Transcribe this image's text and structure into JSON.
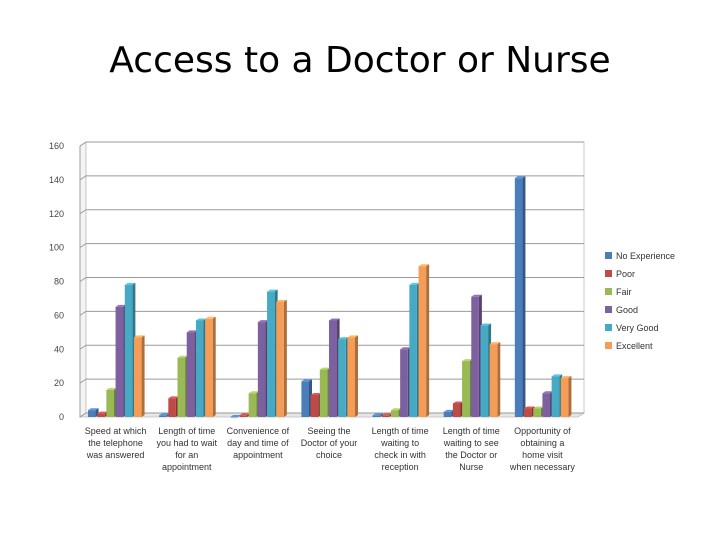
{
  "page": {
    "title": "Access to a Doctor or Nurse"
  },
  "chart_data": {
    "type": "bar",
    "title": "Access to a Doctor or Nurse",
    "xlabel": "",
    "ylabel": "",
    "ylim": [
      0,
      160
    ],
    "yticks": [
      0,
      20,
      40,
      60,
      80,
      100,
      120,
      140,
      160
    ],
    "grid": true,
    "legend_position": "right",
    "categories": [
      [
        "Speed at which",
        "the telephone",
        "was answered"
      ],
      [
        "Length of time",
        "you had to wait",
        "for an",
        "appointment"
      ],
      [
        "Convenience of",
        "day and time of",
        "appointment"
      ],
      [
        "Seeing the",
        "Doctor of your",
        "choice"
      ],
      [
        "Length of time",
        "waiting to",
        "check in with",
        "reception"
      ],
      [
        "Length of time",
        "waiting to see",
        "the Doctor or",
        "Nurse"
      ],
      [
        "Opportunity of",
        "obtaining a",
        "home visit",
        "when necessary"
      ]
    ],
    "series": [
      {
        "name": "No Experience",
        "color": "#4a7ebb",
        "values": [
          4,
          1,
          0,
          21,
          1,
          3,
          141
        ]
      },
      {
        "name": "Poor",
        "color": "#be4b48",
        "values": [
          2,
          11,
          1,
          13,
          1,
          8,
          5
        ]
      },
      {
        "name": "Fair",
        "color": "#98b954",
        "values": [
          16,
          35,
          14,
          28,
          4,
          33,
          5
        ]
      },
      {
        "name": "Good",
        "color": "#7d60a0",
        "values": [
          65,
          50,
          56,
          57,
          40,
          71,
          14
        ]
      },
      {
        "name": "Very Good",
        "color": "#46aac5",
        "values": [
          78,
          57,
          74,
          46,
          78,
          54,
          24
        ]
      },
      {
        "name": "Excellent",
        "color": "#f59d56",
        "values": [
          47,
          58,
          68,
          47,
          89,
          43,
          23
        ]
      }
    ]
  }
}
